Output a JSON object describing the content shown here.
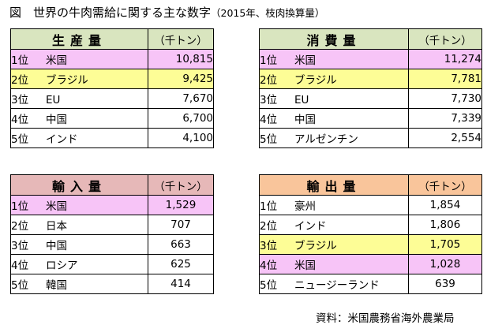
{
  "title": {
    "main": "図　世界の牛肉需給に関する主な数字",
    "sub": "（2015年、枝肉換算量）"
  },
  "unit": "（千トン）",
  "source": "資料：米国農務省海外農業局",
  "colors": {
    "highlight_pink": "#f7c4f7",
    "highlight_yellow": "#fdfd96",
    "header_production": "#d9e5bf",
    "header_consumption": "#d9e5bf",
    "header_import": "#e6b8b8",
    "header_export": "#f9c59b"
  },
  "tables": {
    "production": {
      "name": "生産量",
      "rows": [
        {
          "rank": "1位",
          "country": "米国",
          "value": "10,815",
          "highlight": "pink"
        },
        {
          "rank": "2位",
          "country": "ブラジル",
          "value": "9,425",
          "highlight": "yellow"
        },
        {
          "rank": "3位",
          "country": "EU",
          "value": "7,670",
          "highlight": "none"
        },
        {
          "rank": "4位",
          "country": "中国",
          "value": "6,700",
          "highlight": "none"
        },
        {
          "rank": "5位",
          "country": "インド",
          "value": "4,100",
          "highlight": "none"
        }
      ]
    },
    "consumption": {
      "name": "消費量",
      "rows": [
        {
          "rank": "1位",
          "country": "米国",
          "value": "11,274",
          "highlight": "pink"
        },
        {
          "rank": "2位",
          "country": "ブラジル",
          "value": "7,781",
          "highlight": "yellow"
        },
        {
          "rank": "3位",
          "country": "EU",
          "value": "7,730",
          "highlight": "none"
        },
        {
          "rank": "4位",
          "country": "中国",
          "value": "7,339",
          "highlight": "none"
        },
        {
          "rank": "5位",
          "country": "アルゼンチン",
          "value": "2,554",
          "highlight": "none"
        }
      ]
    },
    "import": {
      "name": "輸入量",
      "rows": [
        {
          "rank": "1位",
          "country": "米国",
          "value": "1,529",
          "highlight": "pink"
        },
        {
          "rank": "2位",
          "country": "日本",
          "value": "707",
          "highlight": "none"
        },
        {
          "rank": "3位",
          "country": "中国",
          "value": "663",
          "highlight": "none"
        },
        {
          "rank": "4位",
          "country": "ロシア",
          "value": "625",
          "highlight": "none"
        },
        {
          "rank": "5位",
          "country": "韓国",
          "value": "414",
          "highlight": "none"
        }
      ]
    },
    "export": {
      "name": "輸出量",
      "rows": [
        {
          "rank": "1位",
          "country": "豪州",
          "value": "1,854",
          "highlight": "none"
        },
        {
          "rank": "2位",
          "country": "インド",
          "value": "1,806",
          "highlight": "none"
        },
        {
          "rank": "3位",
          "country": "ブラジル",
          "value": "1,705",
          "highlight": "yellow"
        },
        {
          "rank": "4位",
          "country": "米国",
          "value": "1,028",
          "highlight": "pink"
        },
        {
          "rank": "5位",
          "country": "ニュージーランド",
          "value": "639",
          "highlight": "none"
        }
      ]
    }
  }
}
